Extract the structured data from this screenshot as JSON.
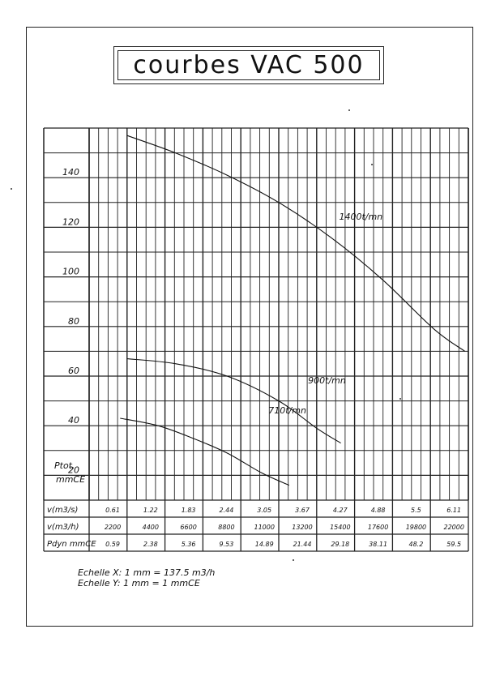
{
  "title": "courbes VAC 500",
  "chart_data": {
    "type": "line",
    "title": "courbes VAC 500",
    "ylabel_lines": [
      "Ptot.",
      "mmCE"
    ],
    "ylim": [
      10,
      160
    ],
    "y_ticks": [
      20,
      40,
      60,
      80,
      100,
      120,
      140
    ],
    "xlim": [
      0,
      22000
    ],
    "series": [
      {
        "name": "1400t/mn",
        "label": "1400t/mn",
        "label_pos": [
          14500,
          123
        ],
        "x": [
          2200,
          5000,
          8000,
          11000,
          14000,
          17000,
          20000,
          21800
        ],
        "y": [
          157,
          150,
          141,
          130,
          116,
          99,
          79,
          70
        ]
      },
      {
        "name": "900t/mn",
        "label": "900t/mn",
        "label_pos": [
          12700,
          57
        ],
        "x": [
          2200,
          5000,
          8000,
          11000,
          13200,
          14600
        ],
        "y": [
          67,
          65,
          60,
          50,
          39,
          33
        ]
      },
      {
        "name": "710t/mn",
        "label": "710t/mn",
        "label_pos": [
          10400,
          45
        ],
        "x": [
          1800,
          4000,
          6000,
          8000,
          10000,
          11600
        ],
        "y": [
          43,
          40,
          35,
          29,
          21,
          16
        ]
      }
    ],
    "table": {
      "rows": [
        {
          "label": "v(m3/s)",
          "values": [
            "0.61",
            "1.22",
            "1.83",
            "2.44",
            "3.05",
            "3.67",
            "4.27",
            "4.88",
            "5.5",
            "6.11"
          ]
        },
        {
          "label": "v(m3/h)",
          "values": [
            "2200",
            "4400",
            "6600",
            "8800",
            "11000",
            "13200",
            "15400",
            "17600",
            "19800",
            "22000"
          ]
        },
        {
          "label": "Pdyn mmCE",
          "values": [
            "0.59",
            "2.38",
            "5.36",
            "9.53",
            "14.89",
            "21.44",
            "29.18",
            "38.11",
            "48.2",
            "59.5"
          ]
        }
      ]
    }
  },
  "notes": {
    "scale_x": "Echelle X: 1 mm = 137.5 m3/h",
    "scale_y": "Echelle Y: 1 mm = 1 mmCE"
  }
}
